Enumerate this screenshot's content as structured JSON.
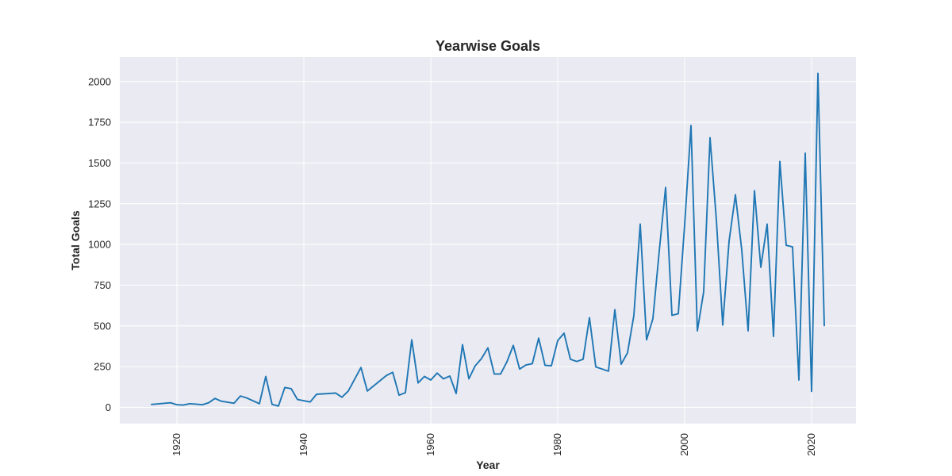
{
  "chart_data": {
    "type": "line",
    "title": "Yearwise Goals",
    "xlabel": "Year",
    "ylabel": "Total Goals",
    "xlim": [
      1911,
      2027
    ],
    "ylim": [
      -100,
      2150
    ],
    "xticks": [
      1920,
      1940,
      1960,
      1980,
      2000,
      2020
    ],
    "yticks": [
      0,
      250,
      500,
      750,
      1000,
      1250,
      1500,
      1750,
      2000
    ],
    "grid": true,
    "series": [
      {
        "color": "#1f77b4",
        "x": [
          1916,
          1919,
          1920,
          1921,
          1922,
          1923,
          1924,
          1925,
          1926,
          1927,
          1929,
          1930,
          1931,
          1933,
          1934,
          1935,
          1936,
          1937,
          1938,
          1939,
          1941,
          1942,
          1945,
          1946,
          1947,
          1949,
          1950,
          1953,
          1954,
          1955,
          1956,
          1957,
          1958,
          1959,
          1960,
          1961,
          1962,
          1963,
          1964,
          1965,
          1966,
          1967,
          1968,
          1969,
          1970,
          1971,
          1972,
          1973,
          1974,
          1975,
          1976,
          1977,
          1978,
          1979,
          1980,
          1981,
          1982,
          1983,
          1984,
          1985,
          1986,
          1988,
          1989,
          1990,
          1991,
          1992,
          1993,
          1994,
          1995,
          1996,
          1997,
          1998,
          1999,
          2000,
          2001,
          2002,
          2003,
          2004,
          2005,
          2006,
          2007,
          2008,
          2009,
          2010,
          2011,
          2012,
          2013,
          2014,
          2015,
          2016,
          2017,
          2018,
          2019,
          2020,
          2021,
          2022
        ],
        "y": [
          18,
          28,
          16,
          14,
          22,
          20,
          16,
          28,
          55,
          38,
          25,
          70,
          58,
          22,
          190,
          18,
          8,
          122,
          115,
          48,
          33,
          80,
          88,
          62,
          100,
          245,
          100,
          195,
          215,
          75,
          90,
          415,
          150,
          190,
          168,
          210,
          175,
          192,
          85,
          385,
          175,
          255,
          300,
          365,
          205,
          205,
          280,
          380,
          235,
          260,
          268,
          425,
          258,
          255,
          410,
          455,
          295,
          282,
          295,
          550,
          248,
          222,
          600,
          265,
          335,
          565,
          1125,
          415,
          545,
          960,
          1350,
          565,
          575,
          1120,
          1730,
          470,
          710,
          1655,
          1150,
          505,
          1020,
          1305,
          965,
          470,
          1330,
          860,
          1125,
          435,
          1510,
          995,
          985,
          168,
          1560,
          98,
          2050,
          502
        ]
      }
    ]
  }
}
